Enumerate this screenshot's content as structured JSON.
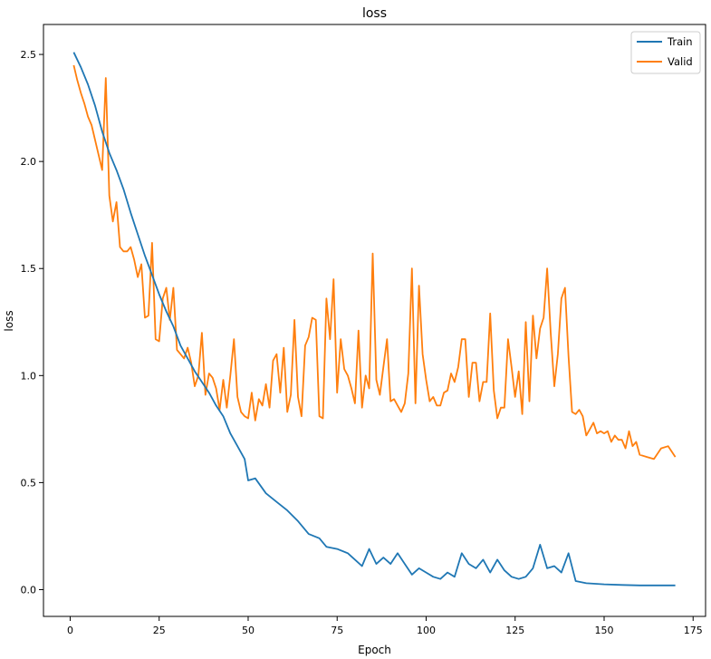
{
  "chart_data": {
    "type": "line",
    "title": "loss",
    "xlabel": "Epoch",
    "ylabel": "loss",
    "xlim": [
      -7.5,
      178.5
    ],
    "ylim": [
      -0.125,
      2.64
    ],
    "xticks": [
      0,
      25,
      50,
      75,
      100,
      125,
      150,
      175
    ],
    "xtick_labels": [
      "0",
      "25",
      "50",
      "75",
      "100",
      "125",
      "150",
      "175"
    ],
    "yticks": [
      0.0,
      0.5,
      1.0,
      1.5,
      2.0,
      2.5
    ],
    "ytick_labels": [
      "0.0",
      "0.5",
      "1.0",
      "1.5",
      "2.0",
      "2.5"
    ],
    "grid": false,
    "legend_position": "top-right",
    "series": [
      {
        "name": "Train",
        "color": "#1f77b4",
        "points": [
          [
            1,
            2.51
          ],
          [
            3,
            2.44
          ],
          [
            5,
            2.36
          ],
          [
            7,
            2.26
          ],
          [
            9,
            2.14
          ],
          [
            11,
            2.04
          ],
          [
            13,
            1.96
          ],
          [
            15,
            1.87
          ],
          [
            17,
            1.76
          ],
          [
            19,
            1.66
          ],
          [
            21,
            1.56
          ],
          [
            23,
            1.47
          ],
          [
            25,
            1.38
          ],
          [
            27,
            1.3
          ],
          [
            29,
            1.23
          ],
          [
            31,
            1.14
          ],
          [
            33,
            1.08
          ],
          [
            35,
            1.02
          ],
          [
            37,
            0.97
          ],
          [
            39,
            0.92
          ],
          [
            41,
            0.86
          ],
          [
            43,
            0.81
          ],
          [
            45,
            0.73
          ],
          [
            47,
            0.67
          ],
          [
            49,
            0.61
          ],
          [
            50,
            0.51
          ],
          [
            52,
            0.52
          ],
          [
            55,
            0.45
          ],
          [
            58,
            0.41
          ],
          [
            61,
            0.37
          ],
          [
            64,
            0.32
          ],
          [
            67,
            0.26
          ],
          [
            70,
            0.24
          ],
          [
            72,
            0.2
          ],
          [
            75,
            0.19
          ],
          [
            78,
            0.17
          ],
          [
            80,
            0.14
          ],
          [
            82,
            0.11
          ],
          [
            84,
            0.19
          ],
          [
            86,
            0.12
          ],
          [
            88,
            0.15
          ],
          [
            90,
            0.12
          ],
          [
            92,
            0.17
          ],
          [
            94,
            0.12
          ],
          [
            96,
            0.07
          ],
          [
            98,
            0.1
          ],
          [
            100,
            0.08
          ],
          [
            102,
            0.06
          ],
          [
            104,
            0.05
          ],
          [
            106,
            0.08
          ],
          [
            108,
            0.06
          ],
          [
            110,
            0.17
          ],
          [
            112,
            0.12
          ],
          [
            114,
            0.1
          ],
          [
            116,
            0.14
          ],
          [
            118,
            0.08
          ],
          [
            120,
            0.14
          ],
          [
            122,
            0.09
          ],
          [
            124,
            0.06
          ],
          [
            126,
            0.05
          ],
          [
            128,
            0.06
          ],
          [
            130,
            0.1
          ],
          [
            132,
            0.21
          ],
          [
            134,
            0.1
          ],
          [
            136,
            0.11
          ],
          [
            138,
            0.08
          ],
          [
            140,
            0.17
          ],
          [
            142,
            0.04
          ],
          [
            145,
            0.03
          ],
          [
            150,
            0.025
          ],
          [
            155,
            0.022
          ],
          [
            160,
            0.02
          ],
          [
            165,
            0.02
          ],
          [
            170,
            0.02
          ]
        ]
      },
      {
        "name": "Valid",
        "color": "#ff7f0e",
        "points": [
          [
            1,
            2.45
          ],
          [
            2,
            2.38
          ],
          [
            3,
            2.32
          ],
          [
            4,
            2.27
          ],
          [
            5,
            2.21
          ],
          [
            6,
            2.17
          ],
          [
            7,
            2.1
          ],
          [
            8,
            2.03
          ],
          [
            9,
            1.96
          ],
          [
            10,
            2.39
          ],
          [
            11,
            1.84
          ],
          [
            12,
            1.72
          ],
          [
            13,
            1.81
          ],
          [
            14,
            1.6
          ],
          [
            15,
            1.58
          ],
          [
            16,
            1.58
          ],
          [
            17,
            1.6
          ],
          [
            18,
            1.54
          ],
          [
            19,
            1.46
          ],
          [
            20,
            1.52
          ],
          [
            21,
            1.27
          ],
          [
            22,
            1.28
          ],
          [
            23,
            1.62
          ],
          [
            24,
            1.17
          ],
          [
            25,
            1.16
          ],
          [
            26,
            1.36
          ],
          [
            27,
            1.41
          ],
          [
            28,
            1.26
          ],
          [
            29,
            1.41
          ],
          [
            30,
            1.12
          ],
          [
            31,
            1.1
          ],
          [
            32,
            1.08
          ],
          [
            33,
            1.13
          ],
          [
            34,
            1.06
          ],
          [
            35,
            0.95
          ],
          [
            36,
            1.0
          ],
          [
            37,
            1.2
          ],
          [
            38,
            0.91
          ],
          [
            39,
            1.01
          ],
          [
            40,
            0.99
          ],
          [
            41,
            0.94
          ],
          [
            42,
            0.84
          ],
          [
            43,
            0.98
          ],
          [
            44,
            0.85
          ],
          [
            45,
            1.0
          ],
          [
            46,
            1.17
          ],
          [
            47,
            0.9
          ],
          [
            48,
            0.83
          ],
          [
            49,
            0.81
          ],
          [
            50,
            0.8
          ],
          [
            51,
            0.92
          ],
          [
            52,
            0.79
          ],
          [
            53,
            0.89
          ],
          [
            54,
            0.86
          ],
          [
            55,
            0.96
          ],
          [
            56,
            0.85
          ],
          [
            57,
            1.07
          ],
          [
            58,
            1.1
          ],
          [
            59,
            0.92
          ],
          [
            60,
            1.13
          ],
          [
            61,
            0.83
          ],
          [
            62,
            0.91
          ],
          [
            63,
            1.26
          ],
          [
            64,
            0.9
          ],
          [
            65,
            0.81
          ],
          [
            66,
            1.14
          ],
          [
            67,
            1.18
          ],
          [
            68,
            1.27
          ],
          [
            69,
            1.26
          ],
          [
            70,
            0.81
          ],
          [
            71,
            0.8
          ],
          [
            72,
            1.36
          ],
          [
            73,
            1.17
          ],
          [
            74,
            1.45
          ],
          [
            75,
            0.92
          ],
          [
            76,
            1.17
          ],
          [
            77,
            1.03
          ],
          [
            78,
            1.0
          ],
          [
            79,
            0.94
          ],
          [
            80,
            0.87
          ],
          [
            81,
            1.21
          ],
          [
            82,
            0.85
          ],
          [
            83,
            1.0
          ],
          [
            84,
            0.94
          ],
          [
            85,
            1.57
          ],
          [
            86,
            0.98
          ],
          [
            87,
            0.91
          ],
          [
            88,
            1.04
          ],
          [
            89,
            1.17
          ],
          [
            90,
            0.88
          ],
          [
            91,
            0.89
          ],
          [
            92,
            0.86
          ],
          [
            93,
            0.83
          ],
          [
            94,
            0.87
          ],
          [
            95,
            1.01
          ],
          [
            96,
            1.5
          ],
          [
            97,
            0.87
          ],
          [
            98,
            1.42
          ],
          [
            99,
            1.1
          ],
          [
            100,
            0.98
          ],
          [
            101,
            0.88
          ],
          [
            102,
            0.9
          ],
          [
            103,
            0.86
          ],
          [
            104,
            0.86
          ],
          [
            105,
            0.92
          ],
          [
            106,
            0.93
          ],
          [
            107,
            1.01
          ],
          [
            108,
            0.97
          ],
          [
            109,
            1.04
          ],
          [
            110,
            1.17
          ],
          [
            111,
            1.17
          ],
          [
            112,
            0.9
          ],
          [
            113,
            1.06
          ],
          [
            114,
            1.06
          ],
          [
            115,
            0.88
          ],
          [
            116,
            0.97
          ],
          [
            117,
            0.97
          ],
          [
            118,
            1.29
          ],
          [
            119,
            0.93
          ],
          [
            120,
            0.8
          ],
          [
            121,
            0.85
          ],
          [
            122,
            0.85
          ],
          [
            123,
            1.17
          ],
          [
            124,
            1.04
          ],
          [
            125,
            0.9
          ],
          [
            126,
            1.02
          ],
          [
            127,
            0.82
          ],
          [
            128,
            1.25
          ],
          [
            129,
            0.88
          ],
          [
            130,
            1.28
          ],
          [
            131,
            1.08
          ],
          [
            132,
            1.22
          ],
          [
            133,
            1.27
          ],
          [
            134,
            1.5
          ],
          [
            135,
            1.2
          ],
          [
            136,
            0.95
          ],
          [
            137,
            1.1
          ],
          [
            138,
            1.36
          ],
          [
            139,
            1.41
          ],
          [
            140,
            1.09
          ],
          [
            141,
            0.83
          ],
          [
            142,
            0.82
          ],
          [
            143,
            0.84
          ],
          [
            144,
            0.81
          ],
          [
            145,
            0.72
          ],
          [
            146,
            0.75
          ],
          [
            147,
            0.78
          ],
          [
            148,
            0.73
          ],
          [
            149,
            0.74
          ],
          [
            150,
            0.73
          ],
          [
            151,
            0.74
          ],
          [
            152,
            0.69
          ],
          [
            153,
            0.72
          ],
          [
            154,
            0.7
          ],
          [
            155,
            0.7
          ],
          [
            156,
            0.66
          ],
          [
            157,
            0.74
          ],
          [
            158,
            0.67
          ],
          [
            159,
            0.69
          ],
          [
            160,
            0.63
          ],
          [
            162,
            0.62
          ],
          [
            164,
            0.61
          ],
          [
            166,
            0.66
          ],
          [
            168,
            0.67
          ],
          [
            170,
            0.62
          ]
        ]
      }
    ]
  }
}
